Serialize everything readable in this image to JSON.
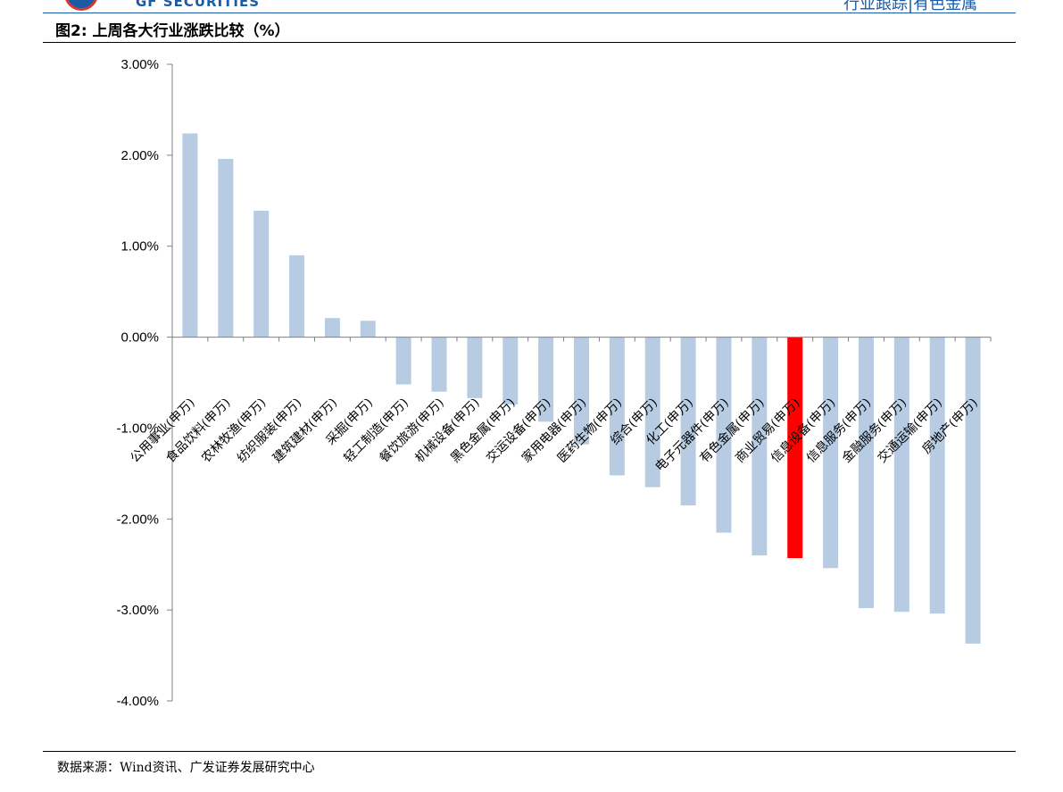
{
  "header": {
    "brand": "GF SECURITIES",
    "report_type": "行业跟踪|有色金属"
  },
  "figure": {
    "title": "图2:  上周各大行业涨跌比较（%）",
    "source": "数据来源：Wind资讯、广发证券发展研究中心"
  },
  "chart_data": {
    "type": "bar",
    "title": "上周各大行业涨跌比较（%）",
    "xlabel": "",
    "ylabel": "",
    "ylim": [
      -4.0,
      3.0
    ],
    "yticks": [
      3.0,
      2.0,
      1.0,
      0.0,
      -1.0,
      -2.0,
      -3.0,
      -4.0
    ],
    "ytick_labels": [
      "3.00%",
      "2.00%",
      "1.00%",
      "0.00%",
      "-1.00%",
      "-2.00%",
      "-3.00%",
      "-4.00%"
    ],
    "grid": false,
    "legend": "none",
    "categories": [
      "公用事业(申万)",
      "食品饮料(申万)",
      "农林牧渔(申万)",
      "纺织服装(申万)",
      "建筑建材(申万)",
      "采掘(申万)",
      "轻工制造(申万)",
      "餐饮旅游(申万)",
      "机械设备(申万)",
      "黑色金属(申万)",
      "交运设备(申万)",
      "家用电器(申万)",
      "医药生物(申万)",
      "综合(申万)",
      "化工(申万)",
      "电子元器件(申万)",
      "有色金属(申万)",
      "商业贸易(申万)",
      "信息设备(申万)",
      "信息服务(申万)",
      "金融服务(申万)",
      "交通运输(申万)",
      "房地产(申万)"
    ],
    "values": [
      2.24,
      1.96,
      1.39,
      0.9,
      0.21,
      0.18,
      -0.52,
      -0.6,
      -0.67,
      -0.74,
      -0.93,
      -1.18,
      -1.52,
      -1.65,
      -1.85,
      -2.15,
      -2.4,
      -2.43,
      -2.54,
      -2.98,
      -3.02,
      -3.04,
      -3.37
    ],
    "highlight": "商业贸易(申万)",
    "colors": {
      "bar": "#b7cce3",
      "highlight": "#ff0000",
      "axis": "#808080"
    }
  }
}
